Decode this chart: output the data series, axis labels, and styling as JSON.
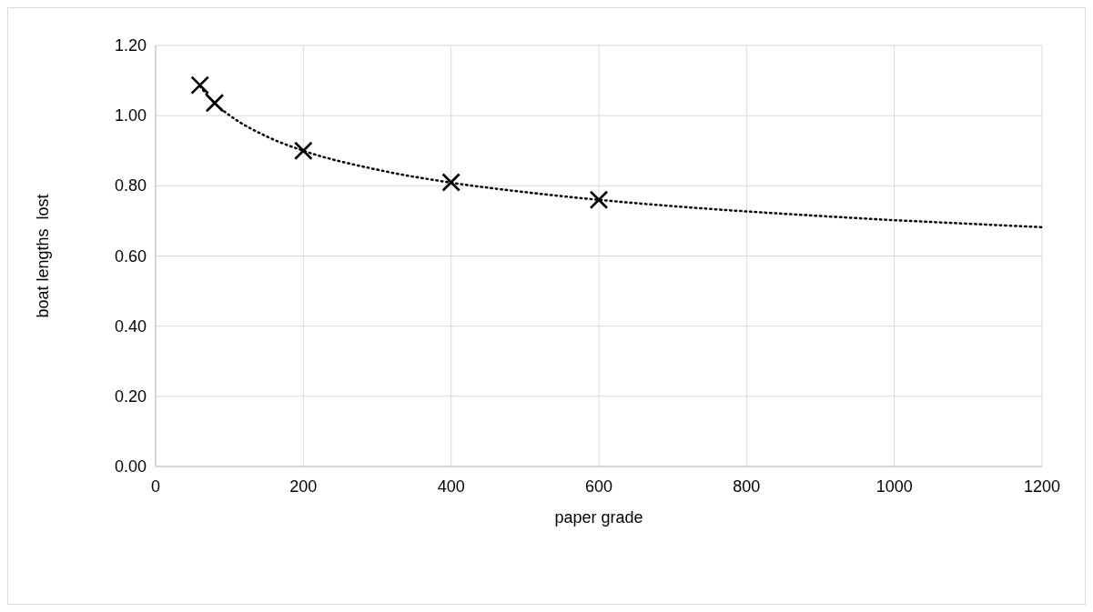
{
  "chart_data": {
    "type": "scatter",
    "xlabel": "paper grade",
    "ylabel": "boat lengths  lost",
    "xlim": [
      0,
      1200
    ],
    "xticks": [
      0,
      200,
      400,
      600,
      800,
      1000,
      1200
    ],
    "ylim": [
      0,
      1.2
    ],
    "yticks": [
      {
        "value": 0,
        "label": "0.00"
      },
      {
        "value": 0.2,
        "label": "0.20"
      },
      {
        "value": 0.4,
        "label": "0.40"
      },
      {
        "value": 0.6,
        "label": "0.60"
      },
      {
        "value": 0.8,
        "label": "0.80"
      },
      {
        "value": 1.0,
        "label": "1.00"
      },
      {
        "value": 1.2,
        "label": "1.20"
      }
    ],
    "grid": true,
    "series": [
      {
        "color": "#000000",
        "marker": "cross",
        "x": [
          60,
          80,
          200,
          400,
          600
        ],
        "values": [
          1.087,
          1.036,
          0.9,
          0.81,
          0.76
        ]
      },
      {
        "type": "line",
        "color": "#000000",
        "line_style": "dotted",
        "marker": "none",
        "x": [
          60,
          80,
          100,
          150,
          200,
          300,
          400,
          500,
          600,
          700,
          800,
          900,
          1000,
          1100,
          1200
        ],
        "values": [
          1.084,
          1.035,
          1.001,
          0.941,
          0.9,
          0.846,
          0.809,
          0.782,
          0.76,
          0.742,
          0.727,
          0.714,
          0.702,
          0.692,
          0.682
        ]
      }
    ]
  }
}
